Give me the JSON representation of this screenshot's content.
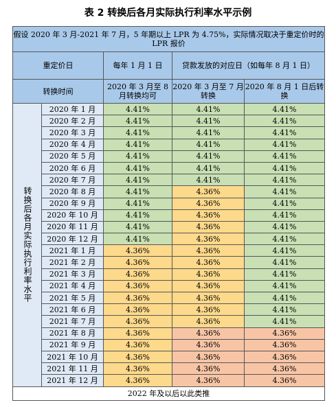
{
  "title": "表 2  转换后各月实际执行利率水平示例",
  "table": {
    "note": "假设 2020 年 3 月-2021 年 7 月，5 年期以上 LPR 为 4.75%，实际情况取决于重定价时的 LPR 报价",
    "header1": [
      "重定价日",
      "每年 1 月 1 日",
      "贷款发放的对应日（如每年 8 月 1 日）"
    ],
    "header2": [
      "转换时间",
      "2020 年 3 月至 8 月转换均可",
      "2020 年 3 月至 7 月转换",
      "2020 年 8 月 1 日后转换"
    ],
    "side_label": "转换后各月实际执行利率水平",
    "rows": [
      [
        "2020 年 1 月",
        "4.41%",
        "4.41%",
        "4.41%"
      ],
      [
        "2020 年 2 月",
        "4.41%",
        "4.41%",
        "4.41%"
      ],
      [
        "2020 年 3 月",
        "4.41%",
        "4.41%",
        "4.41%"
      ],
      [
        "2020 年 4 月",
        "4.41%",
        "4.41%",
        "4.41%"
      ],
      [
        "2020 年 5 月",
        "4.41%",
        "4.41%",
        "4.41%"
      ],
      [
        "2020 年 6 月",
        "4.41%",
        "4.41%",
        "4.41%"
      ],
      [
        "2020 年 7 月",
        "4.41%",
        "4.41%",
        "4.41%"
      ],
      [
        "2020 年 8 月",
        "4.41%",
        "4.36%",
        "4.41%"
      ],
      [
        "2020 年 9 月",
        "4.41%",
        "4.36%",
        "4.41%"
      ],
      [
        "2020 年 10 月",
        "4.41%",
        "4.36%",
        "4.41%"
      ],
      [
        "2020 年 11 月",
        "4.41%",
        "4.36%",
        "4.41%"
      ],
      [
        "2020 年 12 月",
        "4.41%",
        "4.36%",
        "4.41%"
      ],
      [
        "2021 年 1 月",
        "4.36%",
        "4.36%",
        "4.41%"
      ],
      [
        "2021 年 2 月",
        "4.36%",
        "4.36%",
        "4.41%"
      ],
      [
        "2021 年 3 月",
        "4.36%",
        "4.36%",
        "4.41%"
      ],
      [
        "2021 年 4 月",
        "4.36%",
        "4.36%",
        "4.41%"
      ],
      [
        "2021 年 5 月",
        "4.36%",
        "4.36%",
        "4.41%"
      ],
      [
        "2021 年 6 月",
        "4.36%",
        "4.36%",
        "4.41%"
      ],
      [
        "2021 年 7 月",
        "4.36%",
        "4.36%",
        "4.41%"
      ],
      [
        "2021 年 8 月",
        "4.36%",
        "4.36%",
        "4.36%"
      ],
      [
        "2021 年 9 月",
        "4.36%",
        "4.36%",
        "4.36%"
      ],
      [
        "2021 年 10 月",
        "4.36%",
        "4.36%",
        "4.36%"
      ],
      [
        "2021 年 11 月",
        "4.36%",
        "4.36%",
        "4.36%"
      ],
      [
        "2021 年 12 月",
        "4.36%",
        "4.36%",
        "4.36%"
      ]
    ],
    "footer": "2022 年及以后以此类推"
  }
}
